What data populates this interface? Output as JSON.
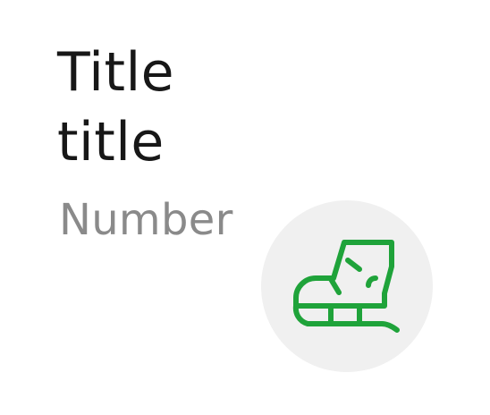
{
  "card": {
    "title": "Title\ntitle",
    "number": "Number",
    "icon": "ice-skate-icon",
    "accent_color": "#1fa33a",
    "circle_color": "#f0f0f0"
  }
}
